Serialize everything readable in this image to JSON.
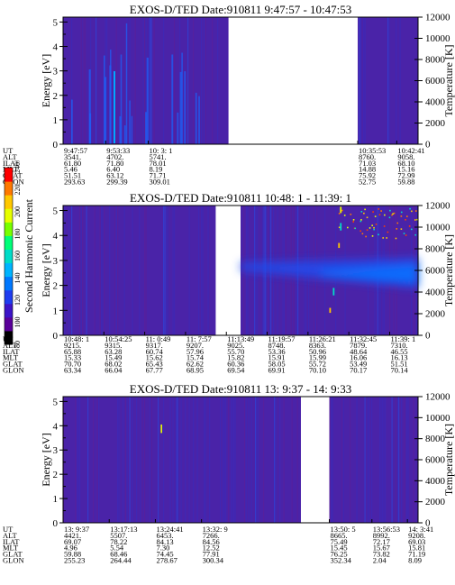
{
  "chart_data": {
    "type": "heatmap",
    "colorbar": {
      "label": "Second Harmonic Current",
      "ticks": [
        "80",
        "100",
        "120",
        "140",
        "160",
        "180",
        "200",
        "220",
        "240"
      ],
      "colors": [
        "#000000",
        "#5a009a",
        "#3c14c8",
        "#1e3cf0",
        "#0078ff",
        "#00b4ff",
        "#00dcc8",
        "#00ff78",
        "#78ff00",
        "#e6ff00",
        "#ffc800",
        "#ff7800",
        "#ff0000"
      ]
    },
    "panels": [
      {
        "title": "EXOS-D/TED   Date:910811  9:47:57 - 10:47:53",
        "ylabel": "Energy [eV]",
        "ylabel_right": "Temperature [K]",
        "yticks": [
          "0",
          "1",
          "2",
          "3",
          "4",
          "5"
        ],
        "ylim": [
          0,
          5.2
        ],
        "yticks_right": [
          "0",
          "2000",
          "4000",
          "6000",
          "8000",
          "10000",
          "12000"
        ],
        "ylim_right": [
          0,
          12000
        ],
        "data_segments": [
          [
            0.0,
            0.466
          ],
          [
            0.83,
            1.0
          ]
        ],
        "feature": "spikes",
        "table": {
          "row_labels": [
            "UT",
            "ALT",
            "ILAT",
            "MLT",
            "GLAT",
            "GLON"
          ],
          "columns": [
            {
              "pos": 0.0,
              "values": [
                "9:47:57",
                "3541.",
                "61.80",
                "5.46",
                "51.51",
                "293.63"
              ]
            },
            {
              "pos": 0.12,
              "values": [
                "9:53:33",
                "4702.",
                "71.80",
                "6.40",
                "63.12",
                "299.39"
              ]
            },
            {
              "pos": 0.24,
              "values": [
                "10: 3: 1",
                "5741.",
                "78.01",
                "8.19",
                "71.71",
                "309.01"
              ]
            },
            {
              "pos": 0.83,
              "values": [
                "10:35:53",
                "8760.",
                "71.03",
                "14.88",
                "75.92",
                "52.75"
              ]
            },
            {
              "pos": 0.94,
              "values": [
                "10:42:41",
                "9058.",
                "68.10",
                "15.16",
                "72.99",
                "59.88"
              ]
            }
          ]
        }
      },
      {
        "title": "EXOS-D/TED   Date:910811  10:48: 1 - 11:39: 1",
        "ylabel": "Energy [eV]",
        "ylabel_right": "Temperature [K]",
        "yticks": [
          "0",
          "1",
          "2",
          "3",
          "4",
          "5"
        ],
        "ylim": [
          0,
          5.2
        ],
        "yticks_right": [
          "0",
          "2000",
          "4000",
          "6000",
          "8000",
          "10000",
          "12000"
        ],
        "ylim_right": [
          0,
          12000
        ],
        "data_segments": [
          [
            0.0,
            0.43
          ],
          [
            0.5,
            1.0
          ]
        ],
        "feature": "band",
        "table": {
          "row_labels": [
            "UT",
            "ALT",
            "ILAT",
            "MLT",
            "GLAT",
            "GLON"
          ],
          "columns": [
            {
              "pos": 0.0,
              "values": [
                "10:48: 1",
                "9215.",
                "65.88",
                "15.33",
                "70.70",
                "63.34"
              ]
            },
            {
              "pos": 0.115,
              "values": [
                "10:54:25",
                "9315.",
                "63.28",
                "15.49",
                "68.02",
                "66.04"
              ]
            },
            {
              "pos": 0.23,
              "values": [
                "11: 0:49",
                "9317.",
                "60.74",
                "15.62",
                "65.43",
                "67.77"
              ]
            },
            {
              "pos": 0.345,
              "values": [
                "11: 7:57",
                "9207.",
                "57.96",
                "15.74",
                "62.62",
                "68.95"
              ]
            },
            {
              "pos": 0.46,
              "values": [
                "11:13:49",
                "9025.",
                "55.70",
                "15.82",
                "60.36",
                "69.54"
              ]
            },
            {
              "pos": 0.575,
              "values": [
                "11:19:57",
                "8748.",
                "53.36",
                "15.91",
                "58.05",
                "69.91"
              ]
            },
            {
              "pos": 0.69,
              "values": [
                "11:26:21",
                "8363.",
                "50.96",
                "15.99",
                "55.72",
                "70.10"
              ]
            },
            {
              "pos": 0.805,
              "values": [
                "11:32:45",
                "7879.",
                "48.64",
                "16.06",
                "53.49",
                "70.17"
              ]
            },
            {
              "pos": 0.92,
              "values": [
                "11:39: 1",
                "7310.",
                "46.55",
                "16.13",
                "51.51",
                "70.14"
              ]
            }
          ]
        }
      },
      {
        "title": "EXOS-D/TED   Date:910811  13: 9:37 - 14: 9:33",
        "ylabel": "Energy [eV]",
        "ylabel_right": "Temperature [K]",
        "yticks": [
          "0",
          "1",
          "2",
          "3",
          "4",
          "5"
        ],
        "ylim": [
          0,
          5.2
        ],
        "yticks_right": [
          "0",
          "2000",
          "4000",
          "6000",
          "8000",
          "10000",
          "12000"
        ],
        "ylim_right": [
          0,
          12000
        ],
        "data_segments": [
          [
            0.0,
            0.67
          ],
          [
            0.75,
            1.0
          ]
        ],
        "feature": "quiet",
        "table": {
          "row_labels": [
            "UT",
            "ALT",
            "ILAT",
            "MLT",
            "GLAT",
            "GLON"
          ],
          "columns": [
            {
              "pos": 0.0,
              "values": [
                "13: 9:37",
                "4421.",
                "69.07",
                "4.96",
                "59.88",
                "255.23"
              ]
            },
            {
              "pos": 0.13,
              "values": [
                "13:17:13",
                "5507.",
                "78.22",
                "5.54",
                "68.46",
                "264.44"
              ]
            },
            {
              "pos": 0.26,
              "values": [
                "13:24:41",
                "6453.",
                "84.13",
                "7.30",
                "74.45",
                "278.67"
              ]
            },
            {
              "pos": 0.39,
              "values": [
                "13:32: 9",
                "7266.",
                "84.56",
                "12.52",
                "77.91",
                "300.34"
              ]
            },
            {
              "pos": 0.75,
              "values": [
                "13:50: 5",
                "8665.",
                "75.49",
                "15.45",
                "76.25",
                "352.34"
              ]
            },
            {
              "pos": 0.87,
              "values": [
                "13:56:53",
                "8992.",
                "72.17",
                "15.67",
                "73.82",
                "2.04"
              ]
            },
            {
              "pos": 0.97,
              "values": [
                "14: 3:41",
                "9208.",
                "69.03",
                "15.81",
                "71.19",
                "8.09"
              ]
            }
          ]
        }
      }
    ]
  }
}
